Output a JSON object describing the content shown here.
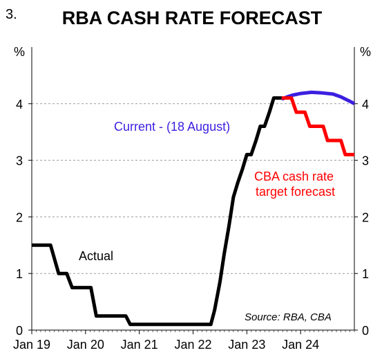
{
  "chart_data": {
    "type": "line",
    "figure_number": "3.",
    "title": "RBA CASH RATE FORECAST",
    "ylabel_left": "%",
    "ylabel_right": "%",
    "ylim": [
      0,
      5
    ],
    "yticks": [
      "0",
      "1",
      "2",
      "3",
      "4"
    ],
    "x_tick_labels": [
      "Jan 19",
      "Jan 20",
      "Jan 21",
      "Jan 22",
      "Jan 23",
      "Jan 24"
    ],
    "x_tick_years": [
      2019,
      2020,
      2021,
      2022,
      2023,
      2024
    ],
    "xlim": [
      2019.0,
      2025.0
    ],
    "source": "Source: RBA, CBA",
    "grid": "horizontal dashed",
    "series": [
      {
        "name": "Actual",
        "color": "#000000",
        "points": [
          [
            2019.0,
            1.5
          ],
          [
            2019.35,
            1.5
          ],
          [
            2019.5,
            1.0
          ],
          [
            2019.65,
            1.0
          ],
          [
            2019.75,
            0.75
          ],
          [
            2020.1,
            0.75
          ],
          [
            2020.2,
            0.25
          ],
          [
            2020.75,
            0.25
          ],
          [
            2020.83,
            0.1
          ],
          [
            2022.33,
            0.1
          ],
          [
            2022.4,
            0.35
          ],
          [
            2022.5,
            0.85
          ],
          [
            2022.58,
            1.35
          ],
          [
            2022.67,
            1.85
          ],
          [
            2022.75,
            2.35
          ],
          [
            2022.83,
            2.6
          ],
          [
            2022.92,
            2.85
          ],
          [
            2023.0,
            3.1
          ],
          [
            2023.08,
            3.1
          ],
          [
            2023.17,
            3.35
          ],
          [
            2023.25,
            3.6
          ],
          [
            2023.33,
            3.6
          ],
          [
            2023.42,
            3.85
          ],
          [
            2023.5,
            4.1
          ],
          [
            2023.65,
            4.1
          ]
        ]
      },
      {
        "name": "Current - (18 August)",
        "color": "#3b1fe0",
        "points": [
          [
            2023.65,
            4.08
          ],
          [
            2023.75,
            4.12
          ],
          [
            2023.85,
            4.15
          ],
          [
            2024.0,
            4.18
          ],
          [
            2024.2,
            4.2
          ],
          [
            2024.4,
            4.19
          ],
          [
            2024.6,
            4.17
          ],
          [
            2024.75,
            4.12
          ],
          [
            2024.9,
            4.05
          ],
          [
            2025.0,
            4.0
          ]
        ]
      },
      {
        "name": "CBA cash rate target forecast",
        "color": "#ff0000",
        "points": [
          [
            2023.65,
            4.1
          ],
          [
            2023.83,
            4.1
          ],
          [
            2023.92,
            3.85
          ],
          [
            2024.08,
            3.85
          ],
          [
            2024.17,
            3.6
          ],
          [
            2024.42,
            3.6
          ],
          [
            2024.5,
            3.35
          ],
          [
            2024.75,
            3.35
          ],
          [
            2024.83,
            3.1
          ],
          [
            2025.0,
            3.1
          ]
        ]
      }
    ],
    "annotations": [
      {
        "text": "Actual",
        "color": "#000000"
      },
      {
        "text": "Current - (18 August)",
        "color": "#3b1fe0"
      },
      {
        "text": "CBA cash rate",
        "color": "#ff0000"
      },
      {
        "text": "target forecast",
        "color": "#ff0000"
      }
    ]
  }
}
